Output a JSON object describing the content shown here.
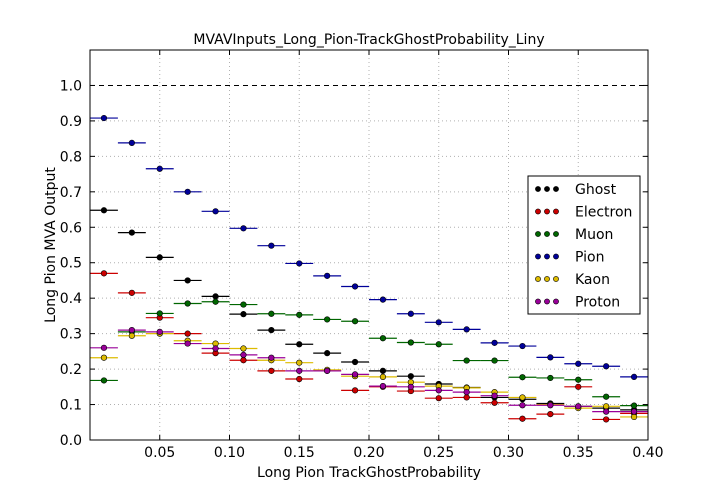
{
  "chart_data": {
    "type": "scatter",
    "title": "MVAVInputs_Long_Pion-TrackGhostProbability_Liny",
    "xlabel": "Long Pion TrackGhostProbability",
    "ylabel": "Long Pion MVA Output",
    "xlim": [
      0.0,
      0.4
    ],
    "ylim": [
      0.0,
      1.1
    ],
    "x_ticks": [
      0.05,
      0.1,
      0.15,
      0.2,
      0.25,
      0.3,
      0.35,
      0.4
    ],
    "x_tick_labels": [
      "0.05",
      "0.10",
      "0.15",
      "0.20",
      "0.25",
      "0.30",
      "0.35",
      "0.40"
    ],
    "y_ticks": [
      0.0,
      0.1,
      0.2,
      0.3,
      0.4,
      0.5,
      0.6,
      0.7,
      0.8,
      0.9,
      1.0
    ],
    "y_tick_labels": [
      "0.0",
      "0.1",
      "0.2",
      "0.3",
      "0.4",
      "0.5",
      "0.6",
      "0.7",
      "0.8",
      "0.9",
      "1.0"
    ],
    "grid": true,
    "reference_line_y": 1.0,
    "legend_position": "right",
    "bin_half_width": 0.01,
    "x": [
      0.01,
      0.03,
      0.05,
      0.07,
      0.09,
      0.11,
      0.13,
      0.15,
      0.17,
      0.19,
      0.21,
      0.23,
      0.25,
      0.27,
      0.29,
      0.31,
      0.33,
      0.35,
      0.37,
      0.39
    ],
    "series": [
      {
        "name": "Ghost",
        "color": "#000000",
        "values": [
          0.648,
          0.585,
          0.515,
          0.45,
          0.405,
          0.355,
          0.31,
          0.27,
          0.245,
          0.22,
          0.195,
          0.18,
          0.158,
          0.148,
          0.12,
          0.115,
          0.103,
          0.095,
          0.09,
          0.085
        ]
      },
      {
        "name": "Electron",
        "color": "#cc0000",
        "values": [
          0.47,
          0.415,
          0.345,
          0.3,
          0.245,
          0.225,
          0.195,
          0.172,
          0.195,
          0.14,
          0.15,
          0.138,
          0.118,
          0.12,
          0.105,
          0.06,
          0.073,
          0.15,
          0.058,
          0.075
        ]
      },
      {
        "name": "Muon",
        "color": "#006600",
        "values": [
          0.168,
          0.305,
          0.357,
          0.385,
          0.39,
          0.382,
          0.356,
          0.353,
          0.34,
          0.335,
          0.287,
          0.275,
          0.27,
          0.224,
          0.224,
          0.177,
          0.175,
          0.17,
          0.122,
          0.097
        ]
      },
      {
        "name": "Pion",
        "color": "#000099",
        "values": [
          0.908,
          0.838,
          0.765,
          0.7,
          0.645,
          0.597,
          0.548,
          0.498,
          0.463,
          0.433,
          0.396,
          0.356,
          0.332,
          0.312,
          0.274,
          0.265,
          0.233,
          0.215,
          0.208,
          0.178
        ]
      },
      {
        "name": "Kaon",
        "color": "#ddbb00",
        "values": [
          0.232,
          0.294,
          0.3,
          0.28,
          0.272,
          0.258,
          0.225,
          0.218,
          0.198,
          0.18,
          0.178,
          0.163,
          0.152,
          0.147,
          0.135,
          0.12,
          0.1,
          0.09,
          0.095,
          0.065
        ]
      },
      {
        "name": "Proton",
        "color": "#990099",
        "values": [
          0.26,
          0.31,
          0.305,
          0.272,
          0.258,
          0.24,
          0.232,
          0.195,
          0.195,
          0.185,
          0.152,
          0.15,
          0.14,
          0.135,
          0.125,
          0.098,
          0.098,
          0.095,
          0.08,
          0.08
        ]
      }
    ]
  }
}
